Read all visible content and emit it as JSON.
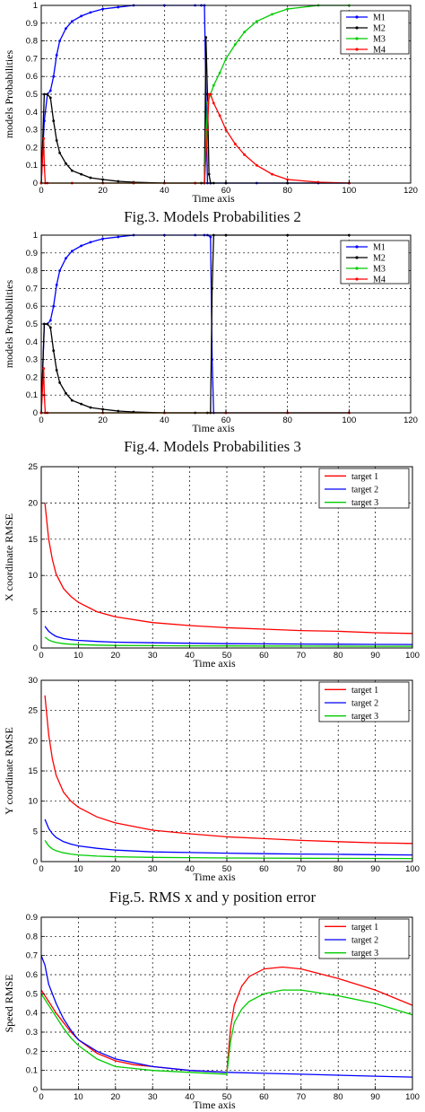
{
  "captions": {
    "fig3": "Fig.3. Models Probabilities 2",
    "fig4": "Fig.4. Models Probabilities 3",
    "fig5": "Fig.5. RMS x and y position error"
  },
  "chart_data": [
    {
      "type": "line",
      "xlabel": "Time axis",
      "ylabel": "models Probabilities",
      "xlim": [
        0,
        120
      ],
      "ylim": [
        0,
        1
      ],
      "xticks": [
        0,
        20,
        40,
        60,
        80,
        100,
        120
      ],
      "yticks": [
        0,
        0.1,
        0.2,
        0.3,
        0.4,
        0.5,
        0.6,
        0.7,
        0.8,
        0.9,
        1
      ],
      "grid": true,
      "legend": "top-right",
      "series": [
        {
          "name": "M1",
          "color": "#0000ff",
          "marker": "dot",
          "x": [
            0,
            1,
            2,
            3,
            4,
            5,
            6,
            8,
            10,
            13,
            16,
            20,
            25,
            30,
            40,
            50,
            52,
            53,
            53.5,
            54,
            55,
            60,
            70,
            80,
            90,
            100
          ],
          "y": [
            0,
            0.35,
            0.5,
            0.52,
            0.6,
            0.72,
            0.8,
            0.87,
            0.91,
            0.94,
            0.96,
            0.98,
            0.99,
            1,
            1,
            1,
            1,
            1,
            0.5,
            0,
            0,
            0,
            0,
            0,
            0,
            0
          ]
        },
        {
          "name": "M2",
          "color": "#000000",
          "marker": "dot",
          "x": [
            0,
            1,
            2,
            3,
            4,
            5,
            6,
            8,
            10,
            13,
            16,
            20,
            25,
            30,
            40,
            50,
            52,
            53,
            53.5,
            54,
            54.5,
            55,
            56,
            60,
            80,
            100
          ],
          "y": [
            0,
            0.5,
            0.5,
            0.48,
            0.35,
            0.24,
            0.17,
            0.11,
            0.07,
            0.05,
            0.03,
            0.02,
            0.01,
            0.005,
            0,
            0,
            0,
            0,
            0.82,
            0.5,
            0.05,
            0,
            0,
            0,
            0,
            0
          ]
        },
        {
          "name": "M3",
          "color": "#00cc00",
          "marker": "dot",
          "x": [
            0,
            10,
            20,
            30,
            40,
            50,
            53,
            54,
            55,
            56,
            58,
            60,
            63,
            66,
            70,
            75,
            80,
            90,
            100
          ],
          "y": [
            0,
            0,
            0,
            0,
            0,
            0,
            0,
            0.45,
            0.5,
            0.55,
            0.62,
            0.7,
            0.78,
            0.85,
            0.91,
            0.95,
            0.98,
            1,
            1
          ]
        },
        {
          "name": "M4",
          "color": "#ff0000",
          "marker": "dot",
          "x": [
            0,
            0.8,
            1,
            1.3,
            2,
            10,
            20,
            30,
            40,
            50,
            53,
            54,
            54.5,
            55,
            56,
            58,
            60,
            63,
            66,
            70,
            75,
            80,
            90,
            100
          ],
          "y": [
            0,
            0.25,
            0.1,
            0,
            0,
            0,
            0,
            0,
            0,
            0,
            0,
            0.3,
            0.5,
            0.5,
            0.45,
            0.38,
            0.3,
            0.22,
            0.16,
            0.1,
            0.05,
            0.02,
            0.005,
            0
          ]
        }
      ]
    },
    {
      "type": "line",
      "xlabel": "Time axis",
      "ylabel": "models Probabilities",
      "xlim": [
        0,
        120
      ],
      "ylim": [
        0,
        1
      ],
      "xticks": [
        0,
        20,
        40,
        60,
        80,
        100,
        120
      ],
      "yticks": [
        0,
        0.1,
        0.2,
        0.3,
        0.4,
        0.5,
        0.6,
        0.7,
        0.8,
        0.9,
        1
      ],
      "grid": true,
      "legend": "top-right",
      "series": [
        {
          "name": "M1",
          "color": "#0000ff",
          "marker": "dot",
          "x": [
            0,
            1,
            2,
            3,
            4,
            5,
            6,
            8,
            10,
            13,
            16,
            20,
            25,
            30,
            40,
            50,
            53,
            54,
            55,
            55.5,
            56,
            60,
            80,
            100
          ],
          "y": [
            0,
            0.5,
            0.5,
            0.52,
            0.6,
            0.72,
            0.8,
            0.87,
            0.91,
            0.94,
            0.96,
            0.98,
            0.99,
            1,
            1,
            1,
            1,
            1,
            0.99,
            0.3,
            0,
            0,
            0,
            0
          ]
        },
        {
          "name": "M2",
          "color": "#000000",
          "marker": "dot",
          "x": [
            0,
            1,
            2,
            3,
            4,
            5,
            6,
            8,
            10,
            13,
            16,
            20,
            25,
            30,
            40,
            50,
            54,
            55,
            55.5,
            56,
            60,
            80,
            100
          ],
          "y": [
            0,
            0.5,
            0.5,
            0.48,
            0.35,
            0.24,
            0.17,
            0.11,
            0.07,
            0.05,
            0.03,
            0.02,
            0.01,
            0.005,
            0,
            0,
            0,
            0,
            0.7,
            1,
            1,
            1,
            1
          ]
        },
        {
          "name": "M3",
          "color": "#00cc00",
          "marker": "dot",
          "x": [
            0,
            20,
            40,
            60,
            80,
            100
          ],
          "y": [
            0,
            0,
            0,
            0,
            0,
            0
          ]
        },
        {
          "name": "M4",
          "color": "#ff0000",
          "marker": "dot",
          "x": [
            0,
            0.8,
            1,
            1.3,
            2,
            20,
            40,
            60,
            80,
            100
          ],
          "y": [
            0,
            0.25,
            0.1,
            0,
            0,
            0,
            0,
            0,
            0,
            0
          ]
        }
      ]
    },
    {
      "type": "line",
      "xlabel": "Time axis",
      "ylabel": "X coordinate RMSE",
      "xlim": [
        0,
        100
      ],
      "ylim": [
        0,
        25
      ],
      "xticks": [
        0,
        10,
        20,
        30,
        40,
        50,
        60,
        70,
        80,
        90,
        100
      ],
      "yticks": [
        0,
        5,
        10,
        15,
        20,
        25
      ],
      "grid": true,
      "legend": "top-right",
      "series": [
        {
          "name": "target 1",
          "color": "#ff0000",
          "x": [
            1,
            2,
            3,
            4,
            6,
            8,
            10,
            15,
            20,
            30,
            40,
            50,
            60,
            70,
            80,
            90,
            100
          ],
          "y": [
            20,
            15,
            12.2,
            10.2,
            8.2,
            7.1,
            6.3,
            5,
            4.3,
            3.5,
            3.1,
            2.8,
            2.6,
            2.4,
            2.3,
            2.1,
            2
          ]
        },
        {
          "name": "target 2",
          "color": "#0000ff",
          "x": [
            1,
            2,
            3,
            4,
            6,
            8,
            10,
            15,
            20,
            30,
            40,
            50,
            60,
            70,
            80,
            90,
            100
          ],
          "y": [
            3,
            2.3,
            1.9,
            1.6,
            1.3,
            1.15,
            1.05,
            0.9,
            0.8,
            0.72,
            0.65,
            0.6,
            0.57,
            0.55,
            0.52,
            0.5,
            0.48
          ]
        },
        {
          "name": "target 3",
          "color": "#00cc00",
          "x": [
            1,
            2,
            3,
            4,
            6,
            8,
            10,
            15,
            20,
            30,
            40,
            50,
            60,
            70,
            80,
            90,
            100
          ],
          "y": [
            1.5,
            1.1,
            0.9,
            0.75,
            0.6,
            0.52,
            0.47,
            0.4,
            0.35,
            0.32,
            0.3,
            0.28,
            0.27,
            0.26,
            0.25,
            0.24,
            0.24
          ]
        }
      ]
    },
    {
      "type": "line",
      "xlabel": "Time axis",
      "ylabel": "Y coordinate RMSE",
      "xlim": [
        0,
        100
      ],
      "ylim": [
        0,
        30
      ],
      "xticks": [
        0,
        10,
        20,
        30,
        40,
        50,
        60,
        70,
        80,
        90,
        100
      ],
      "yticks": [
        0,
        5,
        10,
        15,
        20,
        25,
        30
      ],
      "grid": true,
      "legend": "top-right",
      "series": [
        {
          "name": "target 1",
          "color": "#ff0000",
          "x": [
            1,
            2,
            3,
            4,
            6,
            8,
            10,
            15,
            20,
            30,
            40,
            50,
            60,
            70,
            80,
            90,
            100
          ],
          "y": [
            27.5,
            21,
            17,
            14.3,
            11.5,
            10,
            9,
            7.4,
            6.4,
            5.2,
            4.6,
            4.1,
            3.8,
            3.5,
            3.3,
            3.1,
            3
          ]
        },
        {
          "name": "target 2",
          "color": "#0000ff",
          "x": [
            1,
            2,
            3,
            4,
            6,
            8,
            10,
            15,
            20,
            30,
            40,
            50,
            60,
            70,
            80,
            90,
            100
          ],
          "y": [
            7,
            5.5,
            4.6,
            4,
            3.3,
            2.9,
            2.6,
            2.2,
            1.9,
            1.6,
            1.5,
            1.4,
            1.3,
            1.25,
            1.2,
            1.15,
            1.1
          ]
        },
        {
          "name": "target 3",
          "color": "#00cc00",
          "x": [
            1,
            2,
            3,
            4,
            6,
            8,
            10,
            15,
            20,
            30,
            40,
            50,
            60,
            70,
            80,
            90,
            100
          ],
          "y": [
            3.5,
            2.6,
            2.1,
            1.8,
            1.45,
            1.25,
            1.1,
            0.9,
            0.8,
            0.7,
            0.65,
            0.6,
            0.58,
            0.55,
            0.53,
            0.52,
            0.5
          ]
        }
      ]
    },
    {
      "type": "line",
      "xlabel": "Time axis",
      "ylabel": "Speed RMSE",
      "xlim": [
        0,
        100
      ],
      "ylim": [
        0,
        0.9
      ],
      "xticks": [
        0,
        10,
        20,
        30,
        40,
        50,
        60,
        70,
        80,
        90,
        100
      ],
      "yticks": [
        0,
        0.1,
        0.2,
        0.3,
        0.4,
        0.5,
        0.6,
        0.7,
        0.8,
        0.9
      ],
      "grid": true,
      "legend": "top-right",
      "series": [
        {
          "name": "target 1",
          "color": "#ff0000",
          "x": [
            0,
            2,
            4,
            6,
            8,
            10,
            15,
            20,
            25,
            30,
            40,
            50,
            51,
            52,
            54,
            56,
            60,
            65,
            70,
            80,
            90,
            100
          ],
          "y": [
            0.52,
            0.46,
            0.4,
            0.35,
            0.3,
            0.26,
            0.19,
            0.15,
            0.13,
            0.12,
            0.1,
            0.09,
            0.32,
            0.44,
            0.54,
            0.59,
            0.63,
            0.64,
            0.63,
            0.58,
            0.52,
            0.44
          ]
        },
        {
          "name": "target 2",
          "color": "#0000ff",
          "x": [
            0,
            1,
            2,
            4,
            6,
            8,
            10,
            15,
            20,
            25,
            30,
            40,
            50,
            60,
            70,
            80,
            90,
            100
          ],
          "y": [
            0.7,
            0.65,
            0.55,
            0.45,
            0.37,
            0.31,
            0.26,
            0.2,
            0.16,
            0.14,
            0.12,
            0.1,
            0.09,
            0.085,
            0.08,
            0.075,
            0.07,
            0.065
          ]
        },
        {
          "name": "target 3",
          "color": "#00cc00",
          "x": [
            0,
            2,
            4,
            6,
            8,
            10,
            15,
            20,
            25,
            30,
            40,
            50,
            51,
            52,
            54,
            56,
            60,
            65,
            70,
            80,
            90,
            100
          ],
          "y": [
            0.5,
            0.44,
            0.38,
            0.32,
            0.27,
            0.23,
            0.16,
            0.12,
            0.11,
            0.1,
            0.09,
            0.08,
            0.25,
            0.35,
            0.42,
            0.46,
            0.5,
            0.52,
            0.52,
            0.49,
            0.45,
            0.39
          ]
        }
      ]
    }
  ]
}
